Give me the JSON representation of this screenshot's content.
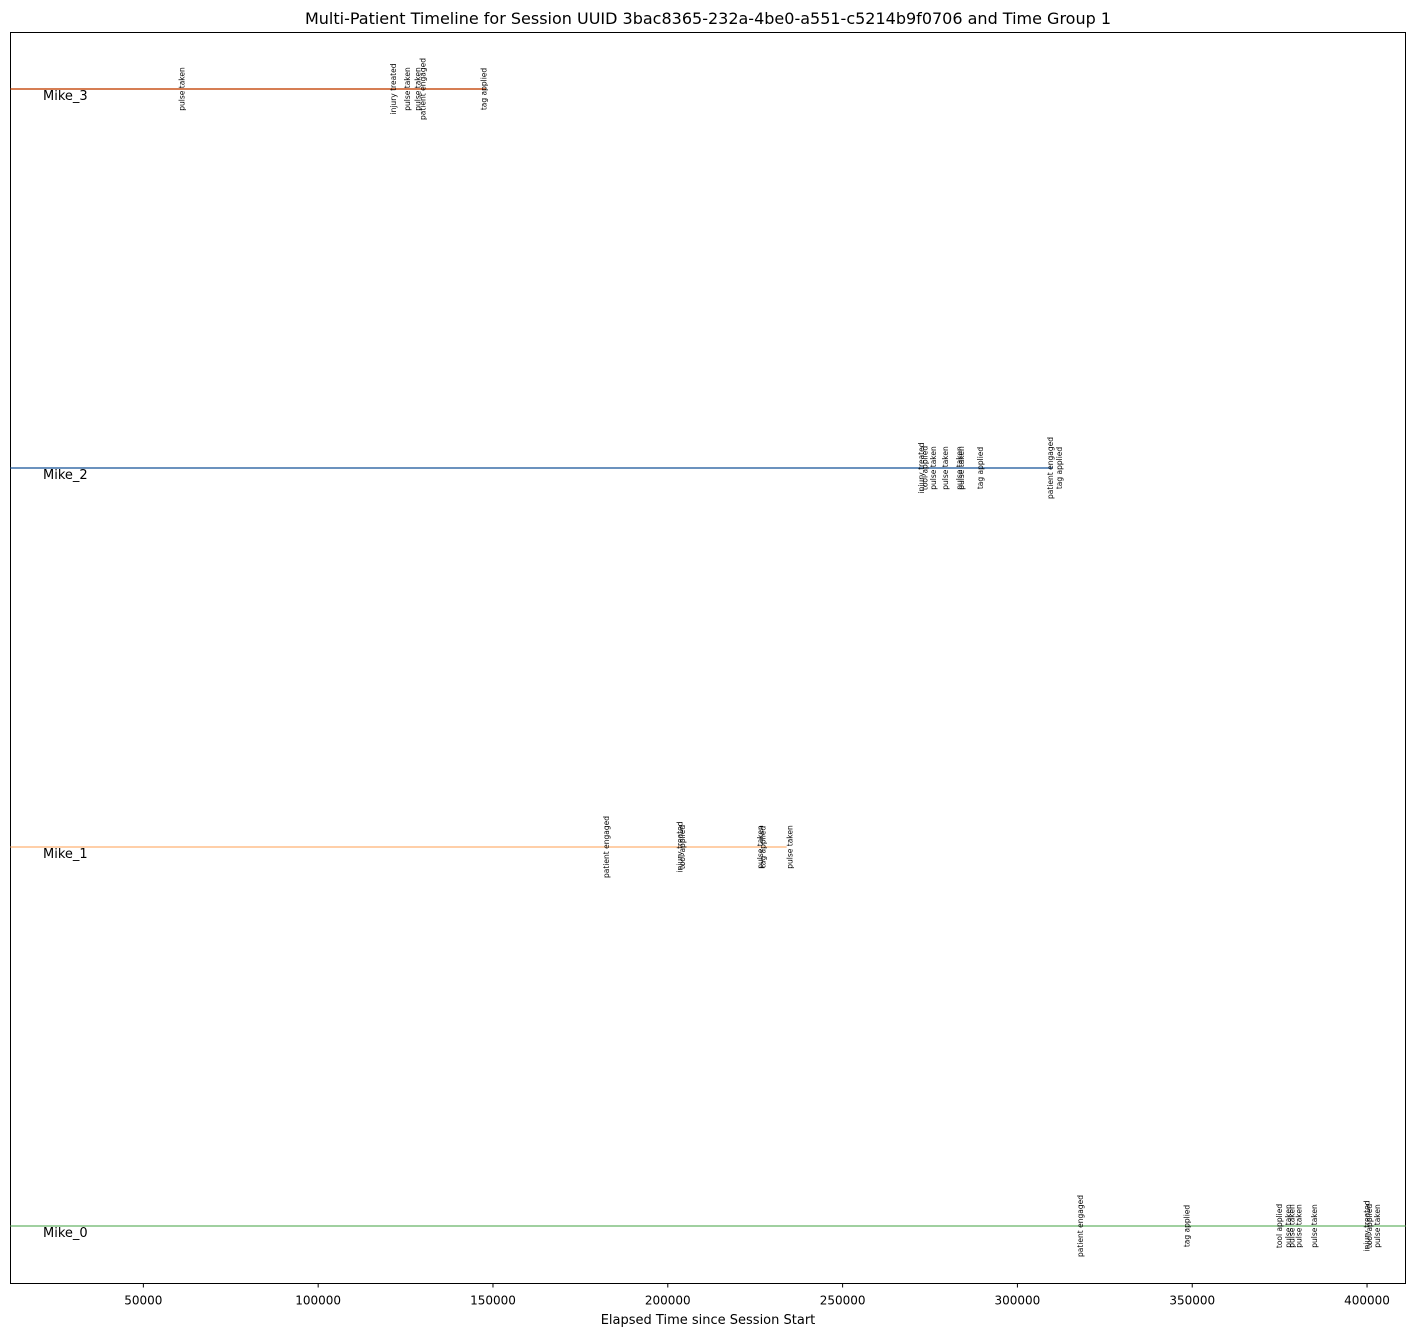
{
  "chart_data": {
    "type": "line",
    "title": "Multi-Patient Timeline for Session UUID 3bac8365-232a-4be0-a551-c5214b9f0706 and Time Group 1",
    "xlabel": "Elapsed Time since Session Start",
    "ylabel": "",
    "xlim": [
      12000,
      411000
    ],
    "xticks": [
      50000,
      100000,
      150000,
      200000,
      250000,
      300000,
      350000,
      400000
    ],
    "grid": false,
    "legend": "none",
    "series": [
      {
        "name": "Mike_3",
        "color": "#c9541c",
        "start": 12000,
        "end": 148000,
        "events": [
          {
            "x": 61000,
            "label": "pulse taken"
          },
          {
            "x": 121500,
            "label": "injury treated"
          },
          {
            "x": 125500,
            "label": "pulse taken"
          },
          {
            "x": 128500,
            "label": "pulse taken"
          },
          {
            "x": 130000,
            "label": "patient engaged"
          },
          {
            "x": 147500,
            "label": "tag applied"
          }
        ]
      },
      {
        "name": "Mike_2",
        "color": "#3a6fa8",
        "start": 12000,
        "end": 310000,
        "events": [
          {
            "x": 272500,
            "label": "injury treated"
          },
          {
            "x": 273500,
            "label": "tool applied"
          },
          {
            "x": 276000,
            "label": "pulse taken"
          },
          {
            "x": 279500,
            "label": "pulse taken"
          },
          {
            "x": 283500,
            "label": "pulse taken"
          },
          {
            "x": 284000,
            "label": "pulse taken"
          },
          {
            "x": 289500,
            "label": "tag applied"
          },
          {
            "x": 309500,
            "label": "patient engaged"
          },
          {
            "x": 312000,
            "label": "tag applied"
          }
        ]
      },
      {
        "name": "Mike_1",
        "color": "#ffbf8c",
        "start": 12000,
        "end": 234000,
        "events": [
          {
            "x": 182500,
            "label": "patient engaged"
          },
          {
            "x": 203500,
            "label": "injury treated"
          },
          {
            "x": 204200,
            "label": "tool applied"
          },
          {
            "x": 226500,
            "label": "pulse taken"
          },
          {
            "x": 227300,
            "label": "tag applied"
          },
          {
            "x": 235000,
            "label": "pulse taken"
          }
        ]
      },
      {
        "name": "Mike_0",
        "color": "#80c080",
        "start": 12000,
        "end": 411000,
        "events": [
          {
            "x": 318000,
            "label": "patient engaged"
          },
          {
            "x": 348500,
            "label": "tag applied"
          },
          {
            "x": 375000,
            "label": "tool applied"
          },
          {
            "x": 377500,
            "label": "pulse taken"
          },
          {
            "x": 378500,
            "label": "pulse taken"
          },
          {
            "x": 380500,
            "label": "pulse taken"
          },
          {
            "x": 385000,
            "label": "pulse taken"
          },
          {
            "x": 400000,
            "label": "injury treated"
          },
          {
            "x": 400700,
            "label": "tool applied"
          },
          {
            "x": 403000,
            "label": "pulse taken"
          }
        ]
      }
    ]
  }
}
